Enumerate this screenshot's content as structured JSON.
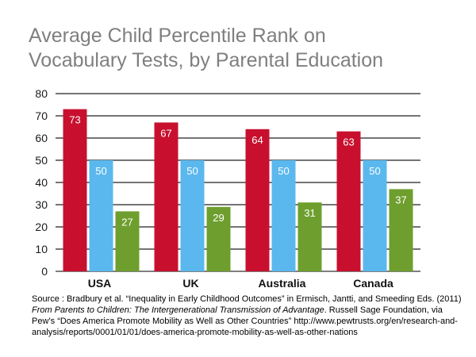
{
  "chart_data": {
    "type": "bar",
    "title_lines": [
      "Average Child Percentile Rank on",
      "Vocabulary Tests, by Parental Education"
    ],
    "categories": [
      "USA",
      "UK",
      "Australia",
      "Canada"
    ],
    "series": [
      {
        "color": "#c8102e",
        "label_color": "#ffffff",
        "values": [
          73,
          67,
          64,
          63
        ]
      },
      {
        "color": "#5bb8ee",
        "label_color": "#ffffff",
        "values": [
          50,
          50,
          50,
          50
        ]
      },
      {
        "color": "#6e9f2e",
        "label_color": "#ffffff",
        "values": [
          27,
          29,
          31,
          37
        ]
      }
    ],
    "ylim": [
      0,
      80
    ],
    "yticks": [
      0,
      10,
      20,
      30,
      40,
      50,
      60,
      70,
      80
    ],
    "grid": true
  },
  "source": {
    "part1": "Source : Bradbury et al. “Inequality in Early Childhood Outcomes” in Ermisch, Jantti, and Smeeding Eds. (2011) ",
    "italic": "From Parents to Children: The Intergenerational Transmission of Advantage",
    "part2": ". Russell Sage Foundation, via Pew’s “Does America Promote Mobility as Well as Other Countries” http://www.pewtrusts.org/en/research-and-analysis/reports/0001/01/01/does-america-promote-mobility-as-well-as-other-nations"
  }
}
